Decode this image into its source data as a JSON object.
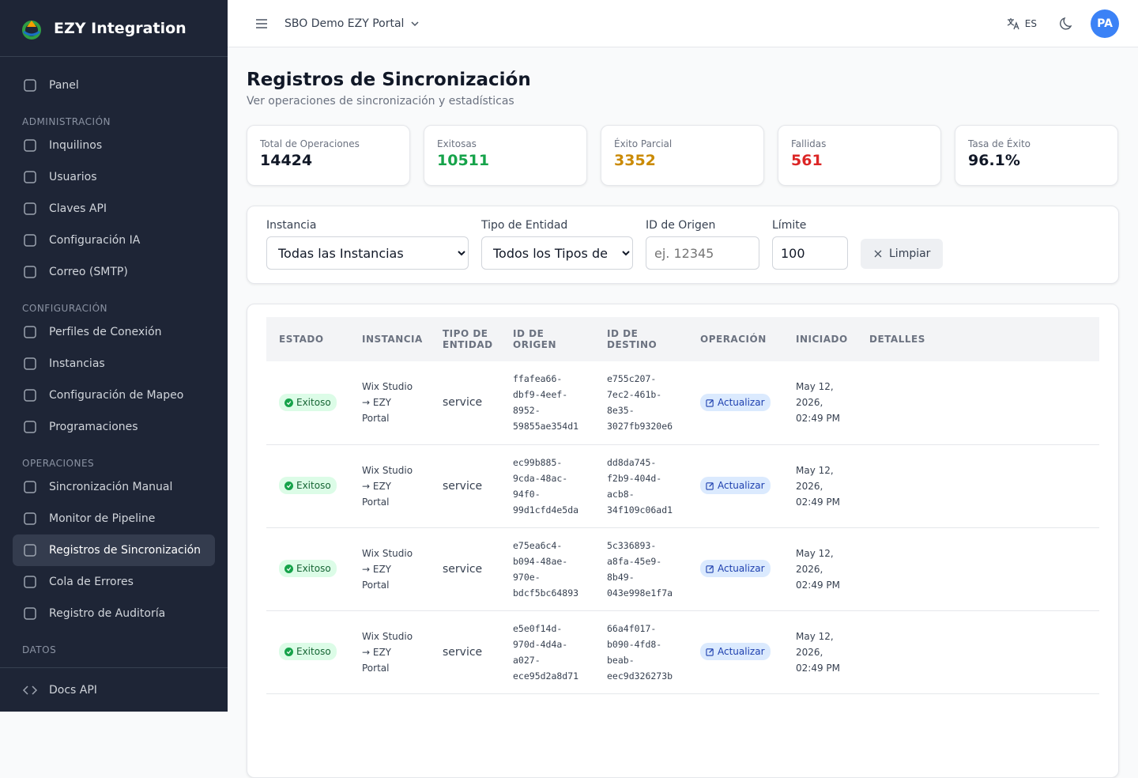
{
  "sidebar": {
    "brand": "EZY Integration",
    "top": [
      "Panel"
    ],
    "sections": [
      {
        "title": "ADMINISTRACIÓN",
        "items": [
          "Inquilinos",
          "Usuarios",
          "Claves API",
          "Configuración IA",
          "Correo (SMTP)"
        ]
      },
      {
        "title": "CONFIGURACIÓN",
        "items": [
          "Perfiles de Conexión",
          "Instancias",
          "Configuración de Mapeo",
          "Programaciones"
        ]
      },
      {
        "title": "OPERACIONES",
        "items": [
          "Sincronización Manual",
          "Monitor de Pipeline",
          "Registros de Sincronización",
          "Cola de Errores",
          "Registro de Auditoría"
        ]
      },
      {
        "title": "DATOS",
        "items": []
      }
    ],
    "active": "Registros de Sincronización",
    "footer_item": "Docs API"
  },
  "topbar": {
    "portal": "SBO Demo EZY Portal",
    "language": "ES",
    "avatar": "PA"
  },
  "header": {
    "title": "Registros de Sincronización",
    "subtitle": "Ver operaciones de sincronización y estadísticas"
  },
  "stats": [
    {
      "label": "Total de Operaciones",
      "value": "14424",
      "color": "#111827"
    },
    {
      "label": "Exitosas",
      "value": "10511",
      "color": "#16a34a"
    },
    {
      "label": "Éxito Parcial",
      "value": "3352",
      "color": "#ca8a04"
    },
    {
      "label": "Fallidas",
      "value": "561",
      "color": "#dc2626"
    },
    {
      "label": "Tasa de Éxito",
      "value": "96.1%",
      "color": "#111827"
    }
  ],
  "filters": {
    "instance_label": "Instancia",
    "instance_value": "Todas las Instancias",
    "entity_label": "Tipo de Entidad",
    "entity_value": "Todos los Tipos de Entidad",
    "source_label": "ID de Origen",
    "source_placeholder": "ej. 12345",
    "limit_label": "Límite",
    "limit_value": "100",
    "clear": "Limpiar"
  },
  "table": {
    "headers": [
      "ESTADO",
      "INSTANCIA",
      "TIPO DE ENTIDAD",
      "ID DE ORIGEN",
      "ID DE DESTINO",
      "OPERACIÓN",
      "INICIADO",
      "DETALLES"
    ],
    "rows": [
      {
        "status": "Exitoso",
        "instance": "Wix Studio → EZY Portal",
        "entity": "service",
        "source_id": "ffafea66-dbf9-4eef-8952-59855ae354d1",
        "dest_id": "e755c207-7ec2-461b-8e35-3027fb9320e6",
        "operation": "Actualizar",
        "started": "May 12, 2026, 02:49 PM"
      },
      {
        "status": "Exitoso",
        "instance": "Wix Studio → EZY Portal",
        "entity": "service",
        "source_id": "ec99b885-9cda-48ac-94f0-99d1cfd4e5da",
        "dest_id": "dd8da745-f2b9-404d-acb8-34f109c06ad1",
        "operation": "Actualizar",
        "started": "May 12, 2026, 02:49 PM"
      },
      {
        "status": "Exitoso",
        "instance": "Wix Studio → EZY Portal",
        "entity": "service",
        "source_id": "e75ea6c4-b094-48ae-970e-bdcf5bc64893",
        "dest_id": "5c336893-a8fa-45e9-8b49-043e998e1f7a",
        "operation": "Actualizar",
        "started": "May 12, 2026, 02:49 PM"
      },
      {
        "status": "Exitoso",
        "instance": "Wix Studio → EZY Portal",
        "entity": "service",
        "source_id": "e5e0f14d-970d-4d4a-a027-ece95d2a8d71",
        "dest_id": "66a4f017-b090-4fd8-beab-eec9d326273b",
        "operation": "Actualizar",
        "started": "May 12, 2026, 02:49 PM"
      }
    ]
  }
}
